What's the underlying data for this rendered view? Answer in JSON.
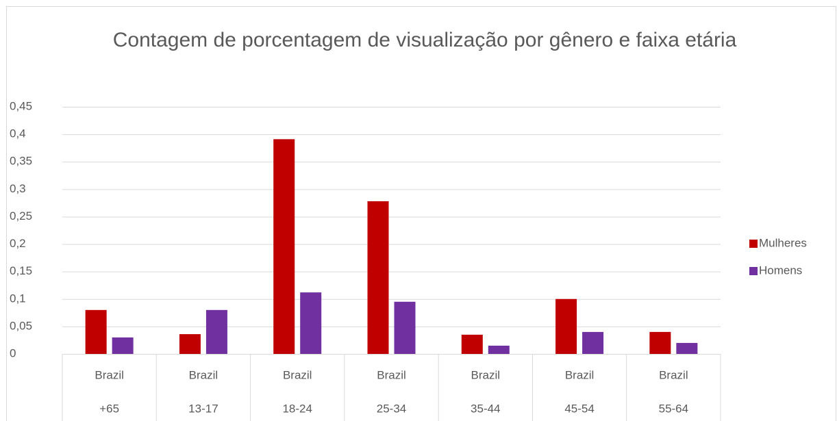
{
  "chart_data": {
    "type": "bar",
    "title": "Contagem de porcentagem de visualização por gênero e faixa etária",
    "categories": [
      {
        "group": "Brazil",
        "label": "+65"
      },
      {
        "group": "Brazil",
        "label": "13-17"
      },
      {
        "group": "Brazil",
        "label": "18-24"
      },
      {
        "group": "Brazil",
        "label": "25-34"
      },
      {
        "group": "Brazil",
        "label": "35-44"
      },
      {
        "group": "Brazil",
        "label": "45-54"
      },
      {
        "group": "Brazil",
        "label": "55-64"
      }
    ],
    "series": [
      {
        "name": "Mulheres",
        "color": "#c00000",
        "values": [
          0.08,
          0.036,
          0.391,
          0.278,
          0.035,
          0.1,
          0.04
        ]
      },
      {
        "name": "Homens",
        "color": "#7030a0",
        "values": [
          0.03,
          0.08,
          0.112,
          0.095,
          0.015,
          0.04,
          0.02
        ]
      }
    ],
    "ylim": [
      0,
      0.45
    ],
    "yticks": [
      0,
      {
        "value": 0.05,
        "label": "0,05"
      },
      {
        "value": 0.1,
        "label": "0,1"
      },
      {
        "value": 0.15,
        "label": "0,15"
      },
      {
        "value": 0.2,
        "label": "0,2"
      },
      {
        "value": 0.25,
        "label": "0,25"
      },
      {
        "value": 0.3,
        "label": "0,3"
      },
      {
        "value": 0.35,
        "label": "0,35"
      },
      {
        "value": 0.4,
        "label": "0,4"
      },
      {
        "value": 0.45,
        "label": "0,45"
      }
    ],
    "grid": true,
    "legend": "right"
  }
}
